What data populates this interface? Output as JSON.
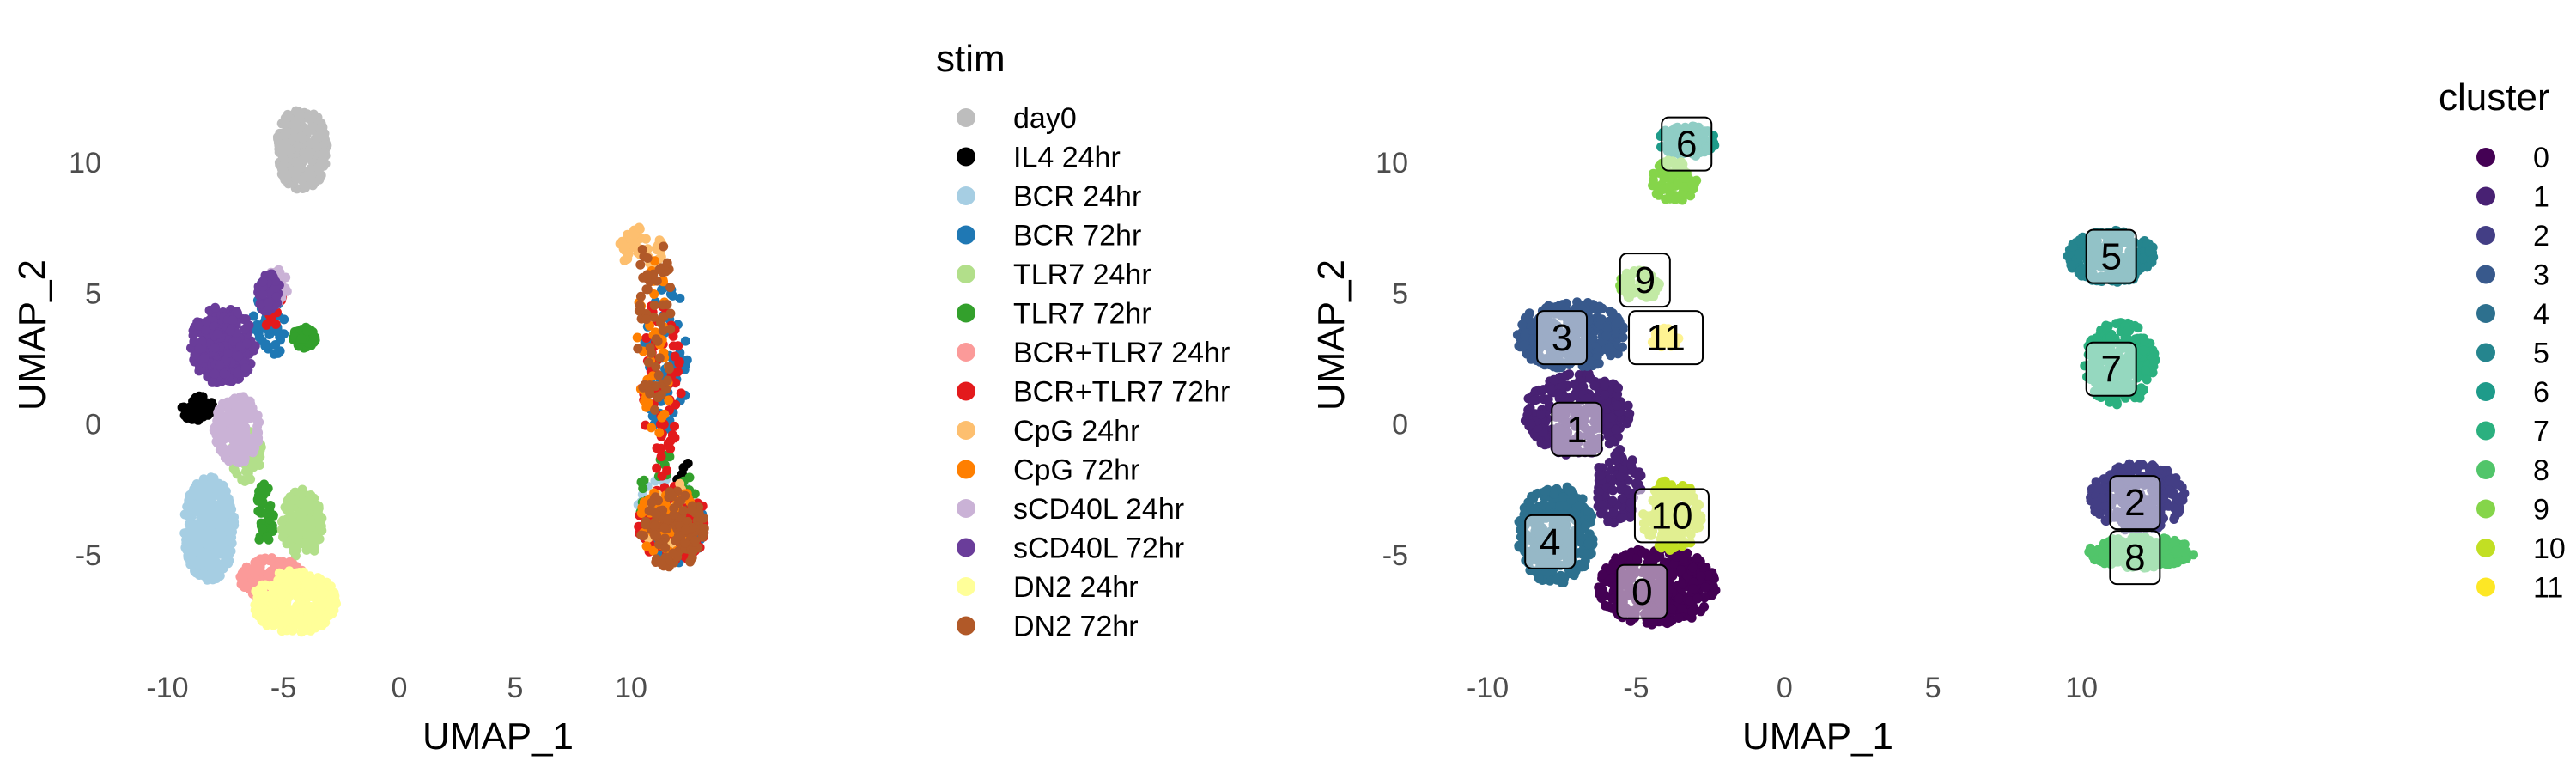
{
  "chart_data": [
    {
      "type": "scatter",
      "title": "",
      "xlabel": "UMAP_1",
      "ylabel": "UMAP_2",
      "xlim": [
        -11,
        15
      ],
      "ylim": [
        -9,
        12
      ],
      "x_ticks": [
        -10,
        -5,
        0,
        5,
        10
      ],
      "x_tick_labels": [
        "-10",
        "-5",
        "0",
        "5",
        "10"
      ],
      "y_ticks": [
        -5,
        0,
        5,
        10
      ],
      "y_tick_labels": [
        "-5",
        "0",
        "5",
        "10"
      ],
      "grid": false,
      "legend_title": "stim",
      "legend_position": "right",
      "series": [
        {
          "name": "day0",
          "color": "#BDBDBD",
          "regions": [
            {
              "x": -4.2,
              "y": 10.5,
              "rx": 1.1,
              "ry": 1.6,
              "n": 260
            }
          ]
        },
        {
          "name": "IL4 24hr",
          "color": "#000000",
          "regions": [
            {
              "x": -8.7,
              "y": 0.6,
              "rx": 0.7,
              "ry": 0.5,
              "n": 60
            },
            {
              "x": 12.2,
              "y": -1.8,
              "rx": 0.4,
              "ry": 0.4,
              "n": 6
            }
          ]
        },
        {
          "name": "BCR 24hr",
          "color": "#A6CEE3",
          "regions": [
            {
              "x": -8.2,
              "y": -4.0,
              "rx": 1.1,
              "ry": 2.0,
              "n": 420
            },
            {
              "x": 11.5,
              "y": -3.5,
              "rx": 1.3,
              "ry": 1.6,
              "n": 30
            }
          ]
        },
        {
          "name": "BCR 72hr",
          "color": "#1F78B4",
          "regions": [
            {
              "x": -5.6,
              "y": 4.0,
              "rx": 0.7,
              "ry": 1.6,
              "n": 60
            },
            {
              "x": 11.5,
              "y": 2.5,
              "rx": 1.0,
              "ry": 3.0,
              "n": 60
            },
            {
              "x": 11.8,
              "y": -4.0,
              "rx": 1.4,
              "ry": 1.4,
              "n": 90
            }
          ]
        },
        {
          "name": "TLR7 24hr",
          "color": "#B2DF8A",
          "regions": [
            {
              "x": -4.2,
              "y": -3.8,
              "rx": 0.9,
              "ry": 1.3,
              "n": 180
            },
            {
              "x": -6.6,
              "y": -1.2,
              "rx": 0.7,
              "ry": 1.0,
              "n": 60
            }
          ]
        },
        {
          "name": "TLR7 72hr",
          "color": "#33A02C",
          "regions": [
            {
              "x": -4.1,
              "y": 3.3,
              "rx": 0.5,
              "ry": 0.4,
              "n": 60
            },
            {
              "x": -5.8,
              "y": -3.5,
              "rx": 0.4,
              "ry": 1.2,
              "n": 40
            },
            {
              "x": 11.5,
              "y": -3.0,
              "rx": 1.3,
              "ry": 2.0,
              "n": 40
            }
          ]
        },
        {
          "name": "BCR+TLR7 24hr",
          "color": "#FB9A99",
          "regions": [
            {
              "x": -5.5,
              "y": -5.9,
              "rx": 1.4,
              "ry": 0.8,
              "n": 160
            }
          ]
        },
        {
          "name": "BCR+TLR7 72hr",
          "color": "#E31A1C",
          "regions": [
            {
              "x": 11.3,
              "y": 1.5,
              "rx": 0.9,
              "ry": 3.5,
              "n": 60
            },
            {
              "x": 11.8,
              "y": -3.8,
              "rx": 1.5,
              "ry": 1.5,
              "n": 110
            },
            {
              "x": -5.5,
              "y": 4.5,
              "rx": 0.5,
              "ry": 0.9,
              "n": 15
            }
          ]
        },
        {
          "name": "CpG 24hr",
          "color": "#FDBF6F",
          "regions": [
            {
              "x": 10.5,
              "y": 6.8,
              "rx": 1.0,
              "ry": 0.9,
              "n": 40
            },
            {
              "x": 11.6,
              "y": -3.5,
              "rx": 1.2,
              "ry": 1.4,
              "n": 20
            }
          ]
        },
        {
          "name": "CpG 72hr",
          "color": "#FF7F00",
          "regions": [
            {
              "x": 11.0,
              "y": 3.0,
              "rx": 0.8,
              "ry": 3.5,
              "n": 40
            },
            {
              "x": 11.7,
              "y": -3.8,
              "rx": 1.4,
              "ry": 1.4,
              "n": 50
            }
          ]
        },
        {
          "name": "sCD40L 24hr",
          "color": "#CAB2D6",
          "regions": [
            {
              "x": -7.0,
              "y": -0.2,
              "rx": 1.0,
              "ry": 1.3,
              "n": 200
            },
            {
              "x": -5.3,
              "y": 5.2,
              "rx": 0.5,
              "ry": 0.8,
              "n": 30
            }
          ]
        },
        {
          "name": "sCD40L 72hr",
          "color": "#6A3D9A",
          "regions": [
            {
              "x": -7.6,
              "y": 3.0,
              "rx": 1.4,
              "ry": 1.5,
              "n": 300
            },
            {
              "x": -5.6,
              "y": 5.0,
              "rx": 0.5,
              "ry": 0.8,
              "n": 60
            }
          ]
        },
        {
          "name": "DN2 24hr",
          "color": "#FFFF99",
          "regions": [
            {
              "x": -4.5,
              "y": -6.8,
              "rx": 1.8,
              "ry": 1.2,
              "n": 340
            }
          ]
        },
        {
          "name": "DN2 72hr",
          "color": "#B15928",
          "regions": [
            {
              "x": 11.0,
              "y": 4.0,
              "rx": 0.8,
              "ry": 3.5,
              "n": 60
            },
            {
              "x": 11.8,
              "y": -4.0,
              "rx": 1.4,
              "ry": 1.5,
              "n": 120
            }
          ]
        }
      ]
    },
    {
      "type": "scatter",
      "title": "",
      "xlabel": "UMAP_1",
      "ylabel": "UMAP_2",
      "xlim": [
        -11,
        15
      ],
      "ylim": [
        -9,
        12
      ],
      "x_ticks": [
        -10,
        -5,
        0,
        5,
        10
      ],
      "x_tick_labels": [
        "-10",
        "-5",
        "0",
        "5",
        "10"
      ],
      "y_ticks": [
        -5,
        0,
        5,
        10
      ],
      "y_tick_labels": [
        "-5",
        "0",
        "5",
        "10"
      ],
      "grid": false,
      "legend_title": "cluster",
      "legend_position": "right",
      "series": [
        {
          "name": "0",
          "color": "#440154",
          "label_at": [
            -4.8,
            -6.4
          ],
          "regions": [
            {
              "x": -4.3,
              "y": -6.2,
              "rx": 2.0,
              "ry": 1.5,
              "n": 420
            }
          ]
        },
        {
          "name": "1",
          "color": "#482173",
          "label_at": [
            -7.0,
            -0.2
          ],
          "regions": [
            {
              "x": -7.0,
              "y": 0.4,
              "rx": 1.8,
              "ry": 1.6,
              "n": 340
            },
            {
              "x": -5.6,
              "y": -2.4,
              "rx": 0.8,
              "ry": 1.5,
              "n": 120
            }
          ]
        },
        {
          "name": "2",
          "color": "#433E85",
          "label_at": [
            11.8,
            -3.0
          ],
          "regions": [
            {
              "x": 11.9,
              "y": -2.8,
              "rx": 1.6,
              "ry": 1.3,
              "n": 300
            }
          ]
        },
        {
          "name": "3",
          "color": "#38598C",
          "label_at": [
            -7.5,
            3.3
          ],
          "regions": [
            {
              "x": -7.2,
              "y": 3.4,
              "rx": 1.9,
              "ry": 1.3,
              "n": 320
            }
          ]
        },
        {
          "name": "4",
          "color": "#2D708E",
          "label_at": [
            -7.9,
            -4.5
          ],
          "regions": [
            {
              "x": -7.7,
              "y": -4.2,
              "rx": 1.3,
              "ry": 1.9,
              "n": 320
            }
          ]
        },
        {
          "name": "5",
          "color": "#25858E",
          "label_at": [
            11.0,
            6.4
          ],
          "regions": [
            {
              "x": 11.0,
              "y": 6.4,
              "rx": 1.5,
              "ry": 1.0,
              "n": 260
            }
          ]
        },
        {
          "name": "6",
          "color": "#1E9B8A",
          "label_at": [
            -3.3,
            10.7
          ],
          "regions": [
            {
              "x": -3.3,
              "y": 10.8,
              "rx": 1.0,
              "ry": 0.6,
              "n": 120
            }
          ]
        },
        {
          "name": "7",
          "color": "#2BB07F",
          "label_at": [
            11.0,
            2.1
          ],
          "regions": [
            {
              "x": 11.3,
              "y": 2.3,
              "rx": 1.2,
              "ry": 1.6,
              "n": 260
            }
          ]
        },
        {
          "name": "8",
          "color": "#51C56A",
          "label_at": [
            11.8,
            -5.1
          ],
          "regions": [
            {
              "x": 12.0,
              "y": -4.9,
              "rx": 1.8,
              "ry": 0.6,
              "n": 220
            }
          ]
        },
        {
          "name": "9",
          "color": "#85D54A",
          "label_at": [
            -4.7,
            5.5
          ],
          "regions": [
            {
              "x": -3.7,
              "y": 9.3,
              "rx": 0.8,
              "ry": 0.8,
              "n": 90
            },
            {
              "x": -4.9,
              "y": 5.3,
              "rx": 0.7,
              "ry": 0.6,
              "n": 60
            }
          ]
        },
        {
          "name": "10",
          "color": "#C2DF23",
          "label_at": [
            -3.8,
            -3.5
          ],
          "regions": [
            {
              "x": -3.8,
              "y": -3.5,
              "rx": 1.0,
              "ry": 1.4,
              "n": 180
            }
          ]
        },
        {
          "name": "11",
          "color": "#FDE725",
          "label_at": [
            -4.0,
            3.3
          ],
          "regions": [
            {
              "x": -4.0,
              "y": 3.3,
              "rx": 0.5,
              "ry": 0.4,
              "n": 40
            }
          ]
        }
      ]
    }
  ]
}
